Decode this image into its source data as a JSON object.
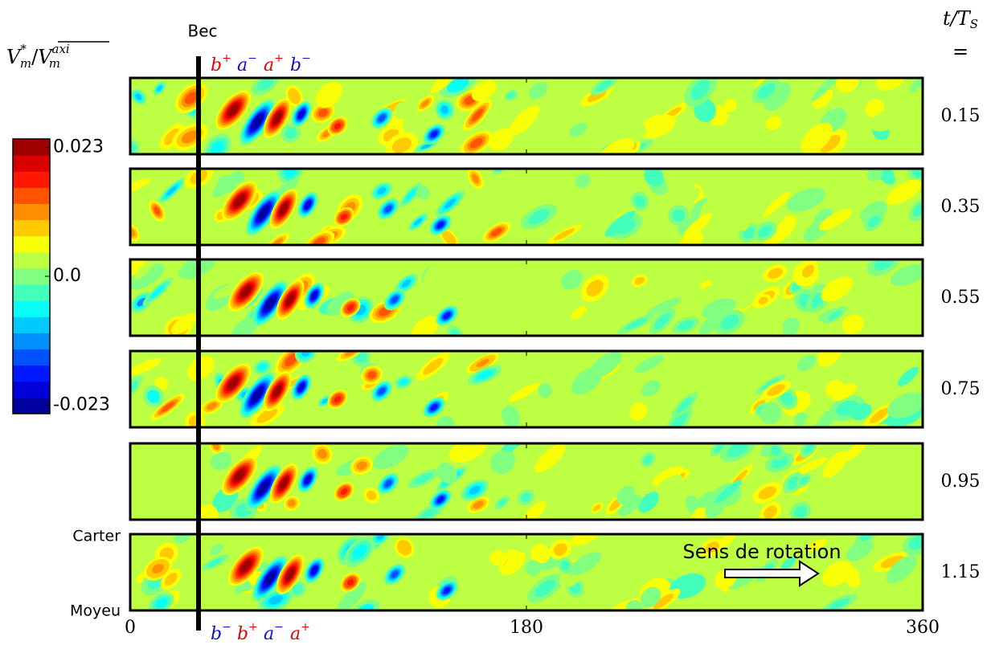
{
  "chart_data": {
    "type": "contour",
    "xlim": [
      0,
      360
    ],
    "xticks": [
      0,
      180,
      360
    ],
    "clim": [
      -0.0245,
      0.0245
    ],
    "cticks": [
      0.023,
      {
        "value": 0,
        "label": "0.0"
      },
      -0.023
    ],
    "panels": [
      0.15,
      0.35,
      0.55,
      0.75,
      0.95,
      1.15
    ],
    "colorbar_label": {
      "num_base": "V",
      "num_sup": "*",
      "num_sub": "m",
      "slash": "/",
      "den_base": "V",
      "den_sup": "axi",
      "den_sub": "m"
    },
    "time_label": {
      "base": "t/T",
      "sub": "S",
      "eq": "="
    },
    "bec": "Bec",
    "carter": "Carter",
    "moyeu": "Moyeu",
    "rotation": "Sens de rotation",
    "top_labels": [
      {
        "base": "b",
        "sup": "+",
        "color": "#e8000b"
      },
      {
        "base": "a",
        "sup": "−",
        "color": "#1010d0"
      },
      {
        "base": "a",
        "sup": "+",
        "color": "#e8000b"
      },
      {
        "base": "b",
        "sup": "−",
        "color": "#1010d0"
      }
    ],
    "bottom_labels": [
      {
        "base": "b",
        "sup": "−",
        "color": "#1010d0"
      },
      {
        "base": "b",
        "sup": "+",
        "color": "#e8000b"
      },
      {
        "base": "a",
        "sup": "−",
        "color": "#1010d0"
      },
      {
        "base": "a",
        "sup": "+",
        "color": "#e8000b"
      }
    ]
  }
}
